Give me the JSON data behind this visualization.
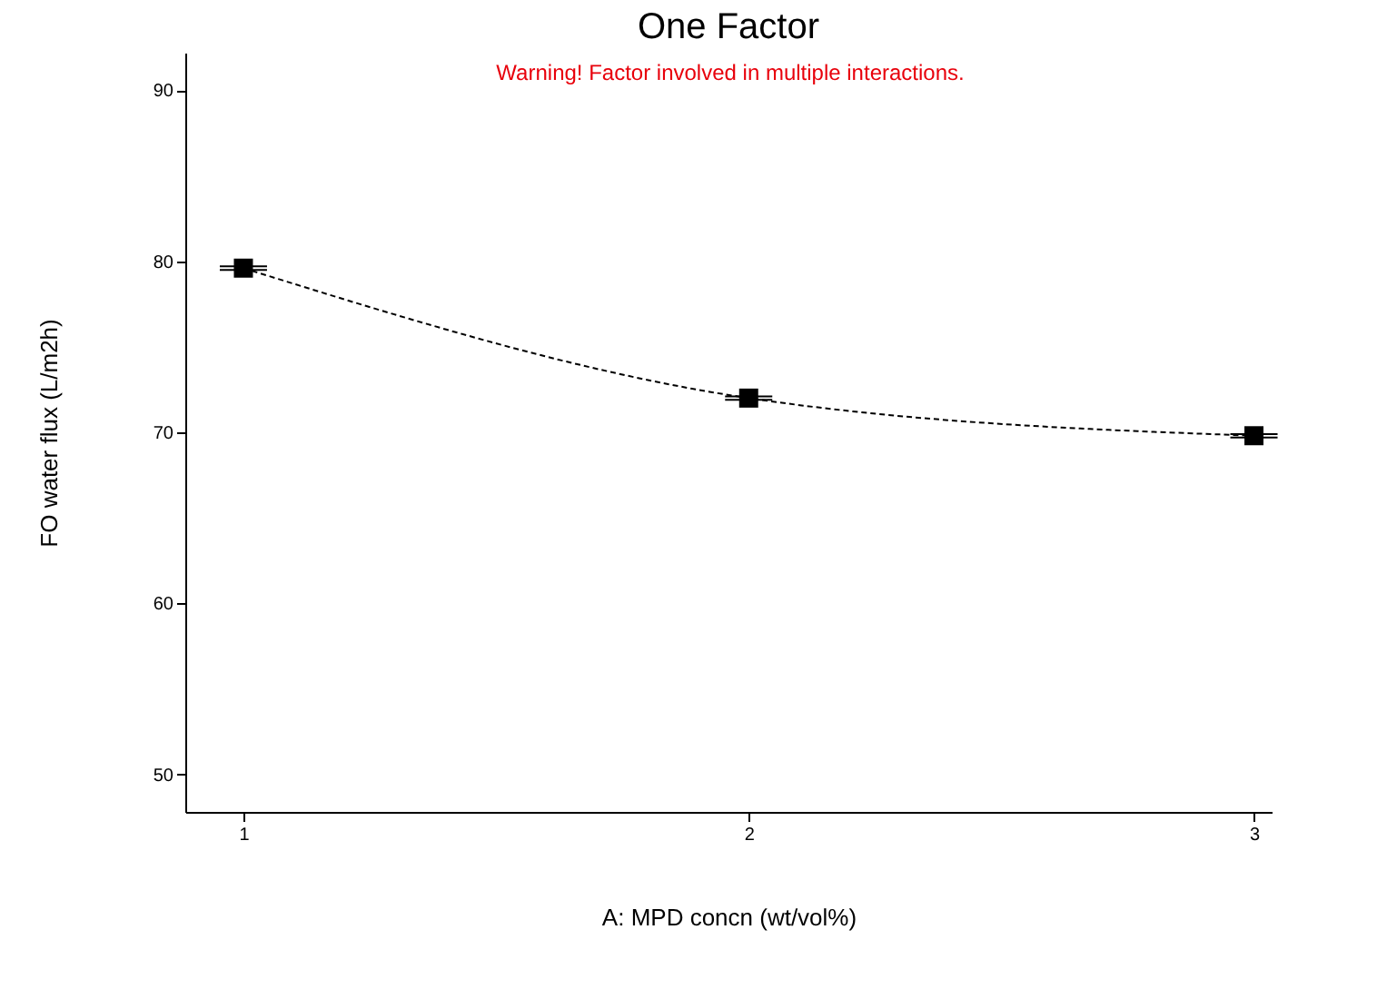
{
  "chart_data": {
    "type": "line",
    "title": "One Factor",
    "xlabel": "A: MPD concn (wt/vol%)",
    "ylabel": "FO water flux (L/m2h)",
    "annotations": [
      "Warning! Factor involved in multiple interactions."
    ],
    "x": [
      1,
      2,
      3
    ],
    "series": [
      {
        "color": "#000000",
        "values": [
          79.6,
          72.0,
          69.8
        ],
        "errors": [
          0.1,
          0.1,
          0.1
        ]
      }
    ],
    "xlim": [
      0.885,
      3.035
    ],
    "xticks": [
      1,
      2,
      3
    ],
    "ylim": [
      47.8,
      92.2
    ],
    "yticks": [
      50,
      60,
      70,
      80,
      90
    ],
    "grid": false,
    "marker": "square",
    "line_style": "dashed"
  }
}
